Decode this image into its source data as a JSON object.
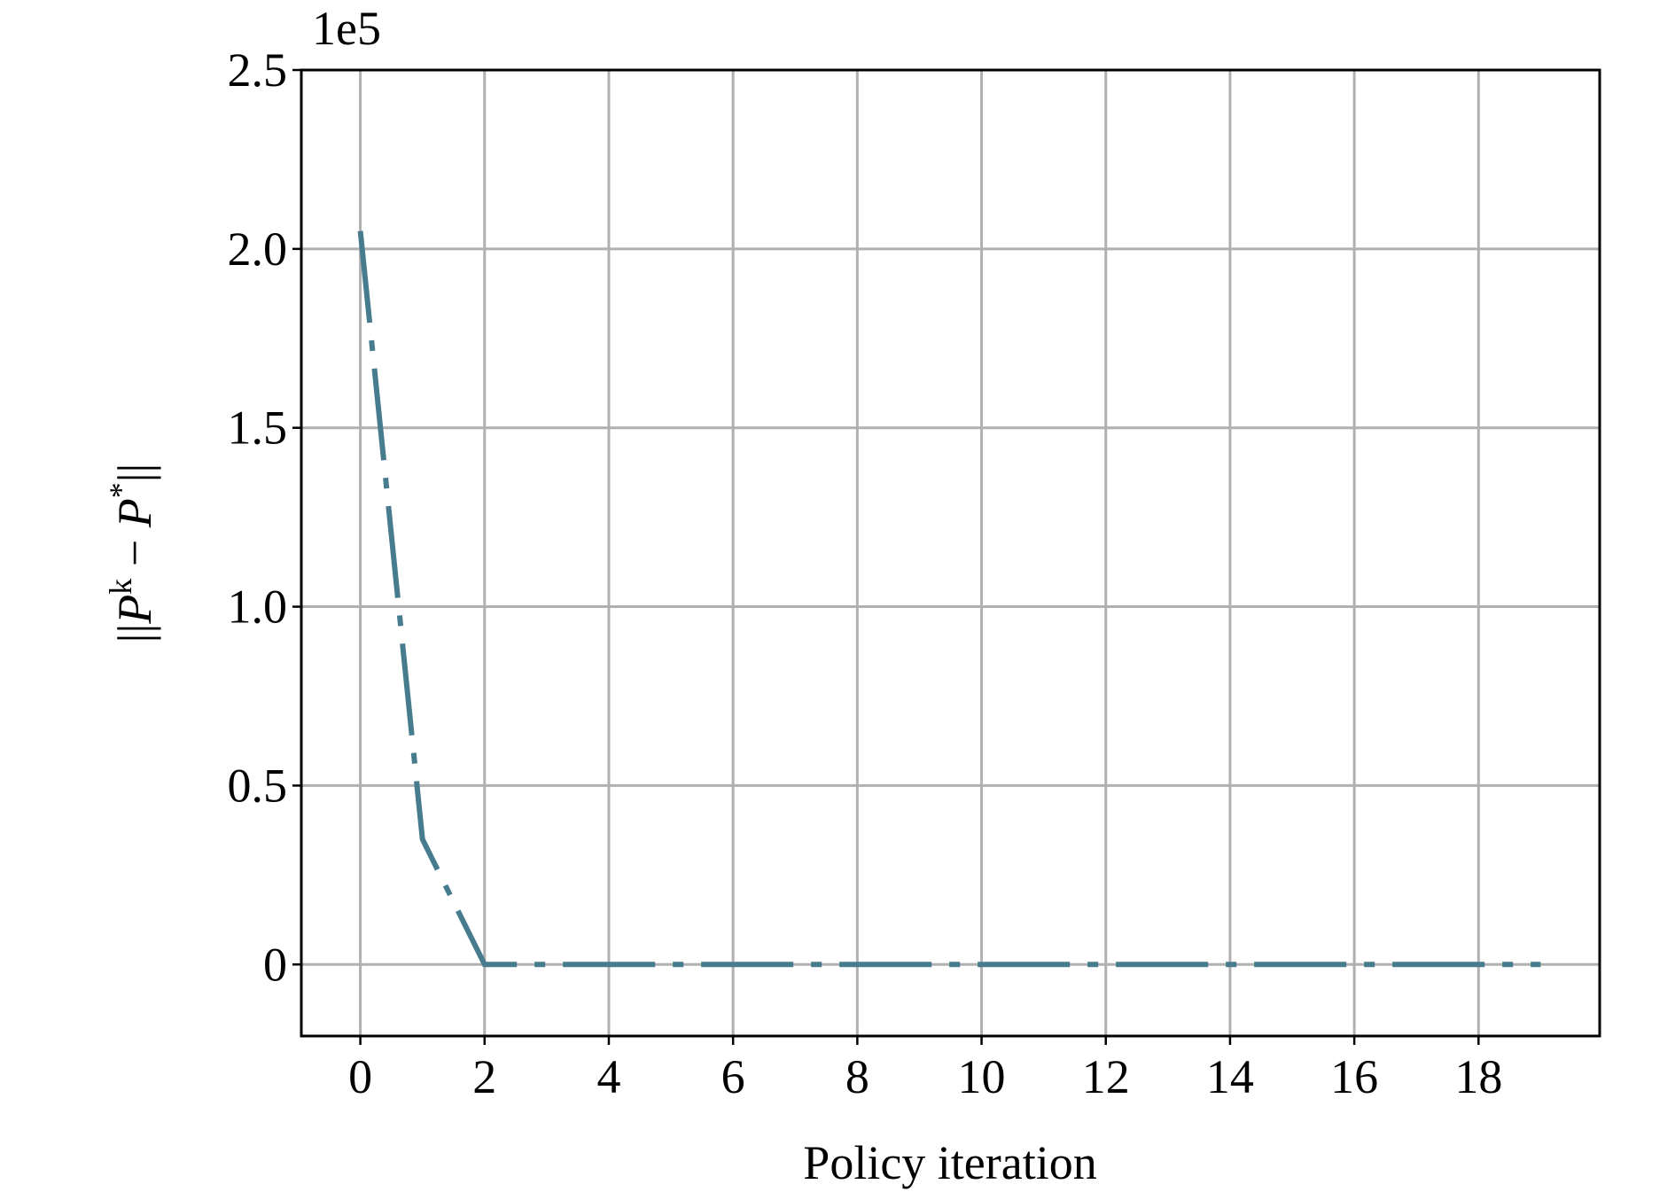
{
  "chart_data": {
    "type": "line",
    "xlabel": "Policy iteration",
    "ylabel": [
      "||",
      "P",
      "k",
      " − ",
      "P",
      "*",
      "||"
    ],
    "offset_text": "1e5",
    "x": [
      0,
      1,
      2,
      3,
      4,
      5,
      6,
      7,
      8,
      9,
      10,
      11,
      12,
      13,
      14,
      15,
      16,
      17,
      18,
      19
    ],
    "series": [
      {
        "color": "#477b8e",
        "values": [
          2.05,
          0.35,
          0,
          0,
          0,
          0,
          0,
          0,
          0,
          0,
          0,
          0,
          0,
          0,
          0,
          0,
          0,
          0,
          0,
          0
        ]
      }
    ],
    "xlim": [
      -0.95,
      19.95
    ],
    "ylim": [
      -0.2,
      2.5
    ],
    "xticks": [
      0,
      2,
      4,
      6,
      8,
      10,
      12,
      14,
      16,
      18
    ],
    "yticks": [
      0,
      0.5,
      {
        "value": 1,
        "label": "1.0"
      },
      1.5,
      {
        "value": 2,
        "label": "2.0"
      },
      2.5
    ],
    "grid": true
  }
}
